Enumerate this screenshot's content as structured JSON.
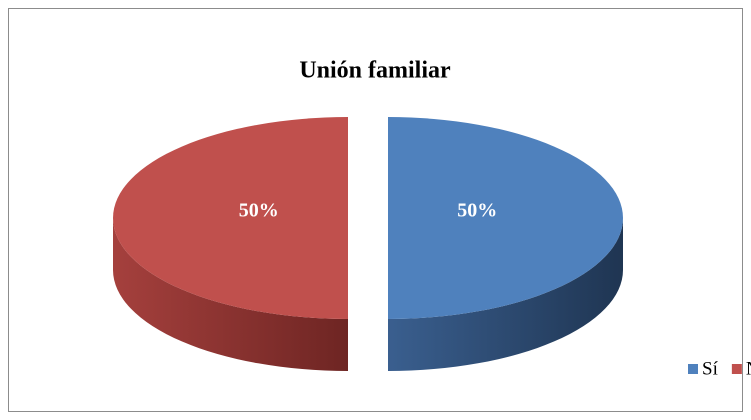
{
  "chart_data": {
    "type": "pie",
    "title": "Unión familiar",
    "categories": [
      "Sí",
      "No"
    ],
    "values": [
      50,
      50
    ],
    "value_labels": [
      "50%",
      "50%"
    ],
    "colors": [
      "#4f81bd",
      "#c0504d"
    ],
    "legend": "bottom-right"
  }
}
